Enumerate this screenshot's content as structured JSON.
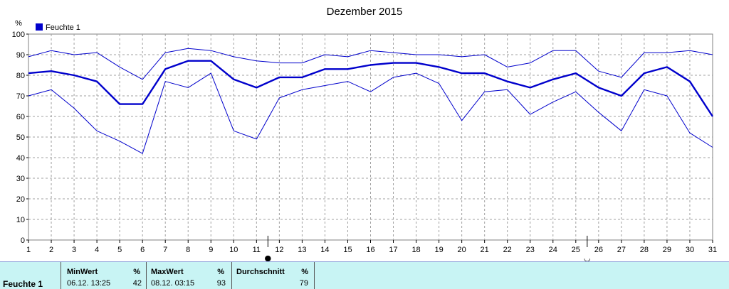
{
  "chart_data": {
    "type": "line",
    "title": "Dezember 2015",
    "ylabel": "%",
    "ylim": [
      0,
      100
    ],
    "yticks": [
      0,
      10,
      20,
      30,
      40,
      50,
      60,
      70,
      80,
      90,
      100
    ],
    "x": [
      1,
      2,
      3,
      4,
      5,
      6,
      7,
      8,
      9,
      10,
      11,
      12,
      13,
      14,
      15,
      16,
      17,
      18,
      19,
      20,
      21,
      22,
      23,
      24,
      25,
      26,
      27,
      28,
      29,
      30,
      31
    ],
    "legend": [
      "Feuchte 1"
    ],
    "grid": true,
    "series": [
      {
        "name": "Feuchte 1",
        "color": "#0000cc",
        "values": [
          81,
          82,
          80,
          77,
          66,
          66,
          83,
          87,
          87,
          78,
          74,
          79,
          79,
          83,
          83,
          85,
          86,
          86,
          84,
          81,
          81,
          77,
          74,
          78,
          81,
          74,
          70,
          81,
          84,
          77,
          60
        ]
      },
      {
        "color": "#0000cc",
        "values": [
          89,
          92,
          90,
          91,
          84,
          78,
          91,
          93,
          92,
          89,
          87,
          86,
          86,
          90,
          89,
          92,
          91,
          90,
          90,
          89,
          90,
          84,
          86,
          92,
          92,
          82,
          79,
          91,
          91,
          92,
          90
        ]
      },
      {
        "color": "#0000cc",
        "values": [
          70,
          73,
          64,
          53,
          48,
          42,
          77,
          74,
          81,
          53,
          49,
          69,
          73,
          75,
          77,
          72,
          79,
          81,
          76,
          58,
          72,
          73,
          61,
          67,
          72,
          62,
          53,
          73,
          70,
          52,
          45
        ]
      }
    ],
    "markers": [
      {
        "x": 11.5,
        "symbol": "●"
      },
      {
        "x": 25.5,
        "symbol": "◡"
      }
    ]
  },
  "summary": {
    "series_name": "Feuchte 1",
    "min_label": "MinWert",
    "min_unit": "%",
    "min_time": "06.12.  13:25",
    "min_value": "42",
    "max_label": "MaxWert",
    "max_unit": "%",
    "max_time": "08.12.  03:15",
    "max_value": "93",
    "avg_label": "Durchschnitt",
    "avg_unit": "%",
    "avg_value": "79"
  }
}
